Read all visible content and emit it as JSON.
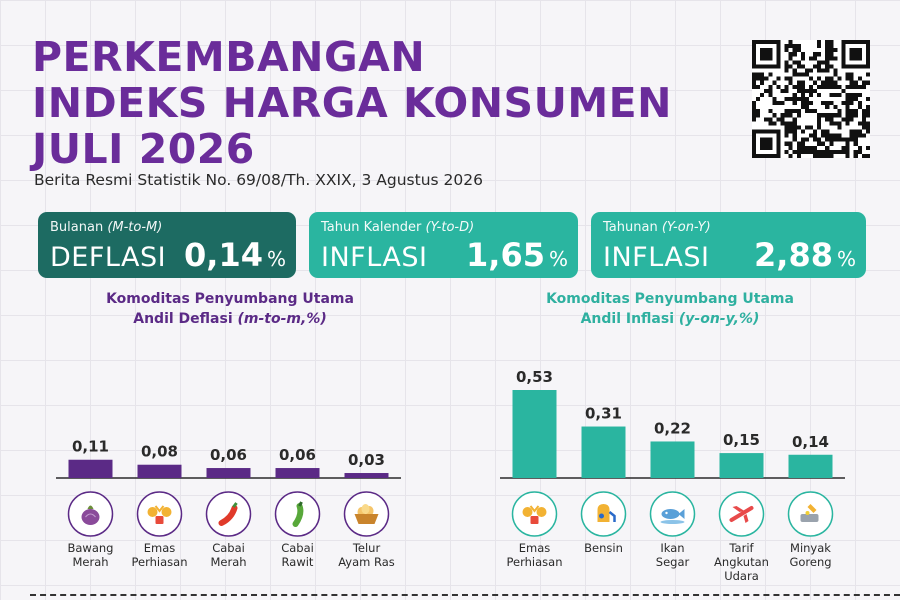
{
  "header": {
    "title_line1": "PERKEMBANGAN",
    "title_line2": "INDEKS HARGA KONSUMEN",
    "title_line3": "JULI 2026",
    "subtitle": "Berita Resmi Statistik No. 69/08/Th. XXIX, 3 Agustus 2026"
  },
  "cards": [
    {
      "label": "Bulanan",
      "label_italic": "(M-to-M)",
      "kind": "DEFLASI",
      "value": "0,14",
      "unit": "%",
      "color": "#1d6b62"
    },
    {
      "label": "Tahun Kalender",
      "label_italic": "(Y-to-D)",
      "kind": "INFLASI",
      "value": "1,65",
      "unit": "%",
      "color": "#2ab5a0"
    },
    {
      "label": "Tahunan",
      "label_italic": "(Y-on-Y)",
      "kind": "INFLASI",
      "value": "2,88",
      "unit": "%",
      "color": "#2ab5a0"
    }
  ],
  "sections": {
    "left": {
      "line1": "Komoditas Penyumbang Utama",
      "line2_a": "Andil Deflasi ",
      "line2_b": "(m-to-m,%)"
    },
    "right": {
      "line1": "Komoditas Penyumbang Utama",
      "line2_a": "Andil Inflasi ",
      "line2_b": "(y-on-y,%)"
    }
  },
  "chart_data": [
    {
      "type": "bar",
      "title": "Komoditas Penyumbang Utama Andil Deflasi (m-to-m,%)",
      "categories": [
        "Bawang Merah",
        "Emas Perhiasan",
        "Cabai Merah",
        "Cabai Rawit",
        "Telur Ayam Ras"
      ],
      "category_lines": [
        [
          "Bawang",
          "Merah"
        ],
        [
          "Emas",
          "Perhiasan"
        ],
        [
          "Cabai",
          "Merah"
        ],
        [
          "Cabai",
          "Rawit"
        ],
        [
          "Telur",
          "Ayam Ras"
        ]
      ],
      "values": [
        0.11,
        0.08,
        0.06,
        0.06,
        0.03
      ],
      "value_labels": [
        "0,11",
        "0,08",
        "0,06",
        "0,06",
        "0,03"
      ],
      "icons": [
        "onion-icon",
        "jewelry-icon",
        "red-chili-icon",
        "green-chili-icon",
        "egg-basket-icon"
      ],
      "bar_color": "#5b2a86"
    },
    {
      "type": "bar",
      "title": "Komoditas Penyumbang Utama Andil Inflasi (y-on-y,%)",
      "categories": [
        "Emas Perhiasan",
        "Bensin",
        "Ikan Segar",
        "Tarif Angkutan Udara",
        "Minyak Goreng"
      ],
      "category_lines": [
        [
          "Emas",
          "Perhiasan"
        ],
        [
          "Bensin"
        ],
        [
          "Ikan",
          "Segar"
        ],
        [
          "Tarif",
          "Angkutan",
          "Udara"
        ],
        [
          "Minyak",
          "Goreng"
        ]
      ],
      "values": [
        0.53,
        0.31,
        0.22,
        0.15,
        0.14
      ],
      "value_labels": [
        "0,53",
        "0,31",
        "0,22",
        "0,15",
        "0,14"
      ],
      "icons": [
        "jewelry-icon",
        "fuel-pump-icon",
        "fish-icon",
        "airplane-icon",
        "cooking-oil-icon"
      ],
      "bar_color": "#2ab5a0"
    }
  ]
}
